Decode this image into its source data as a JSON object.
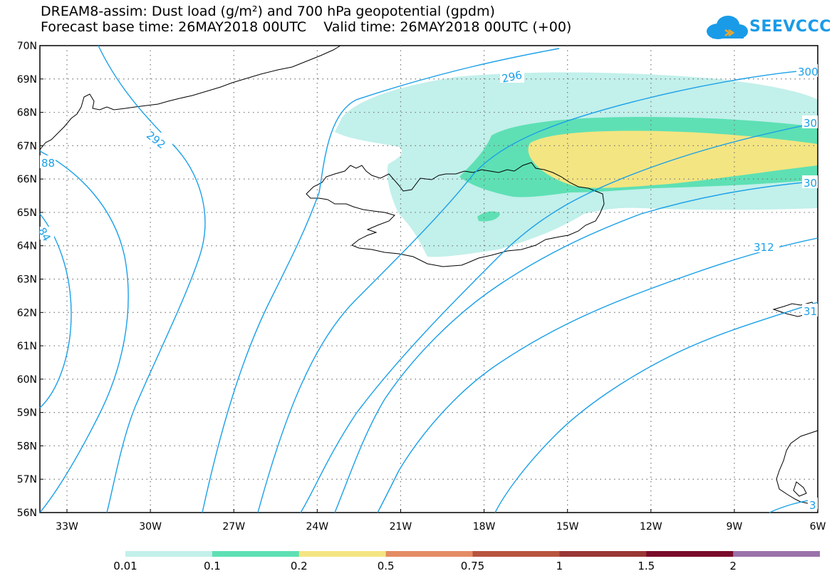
{
  "title_line1": "DREAM8-assim: Dust load (g/m²) and 700 hPa geopotential (gpdm)",
  "title_line2": "Forecast base time: 26MAY2018 00UTC    Valid time: 26MAY2018 00UTC (+00)",
  "logo_text": "SEEVCCC",
  "lat_ticks": [
    "70N",
    "69N",
    "68N",
    "67N",
    "66N",
    "65N",
    "64N",
    "63N",
    "62N",
    "61N",
    "60N",
    "59N",
    "58N",
    "57N",
    "56N"
  ],
  "lon_ticks": [
    "33W",
    "30W",
    "27W",
    "24W",
    "21W",
    "18W",
    "15W",
    "12W",
    "9W",
    "6W"
  ],
  "contour_labels": {
    "c284": "84",
    "c288": "88",
    "c292": "292",
    "c296": "296",
    "c300": "300",
    "c304": "30",
    "c308": "30",
    "c312": "312",
    "c316": "31",
    "c320": "3"
  },
  "colorbar": {
    "labels": [
      "0.01",
      "0.1",
      "0.2",
      "0.5",
      "0.75",
      "1",
      "1.5",
      "2"
    ],
    "colors": [
      "#c2f0eb",
      "#5ee0b4",
      "#f3e582",
      "#e48c64",
      "#b8543f",
      "#9a3636",
      "#7a0a2a",
      "#3a2418",
      "#9a72aa"
    ]
  },
  "map_colors": {
    "light_dust": "#c2f0eb",
    "medium_dust": "#5ee0b4",
    "heavy_dust": "#f3e582",
    "contour": "#1aa0e8"
  }
}
